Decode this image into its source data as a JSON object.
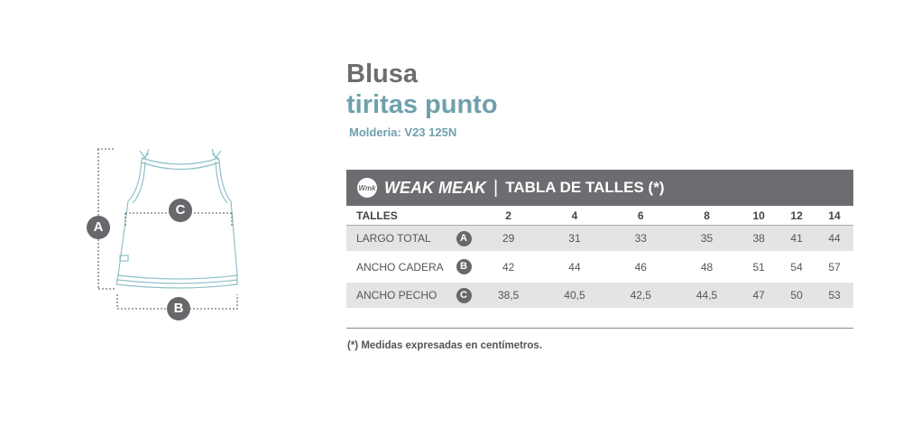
{
  "title": "Blusa",
  "subtitle": "tiritas punto",
  "molderia": "Molderia: V23 125N",
  "header": {
    "logo_text": "Wmk",
    "brand": "WEAK MEAK",
    "separator": "|",
    "title": "TABLA DE TALLES (*)"
  },
  "table": {
    "columns": [
      "TALLES",
      "",
      "2",
      "4",
      "6",
      "8",
      "10",
      "12",
      "14"
    ],
    "rows": [
      {
        "label": "LARGO TOTAL",
        "badge": "A",
        "values": [
          "29",
          "31",
          "33",
          "35",
          "38",
          "41",
          "44"
        ]
      },
      {
        "label": "ANCHO CADERA",
        "badge": "B",
        "values": [
          "42",
          "44",
          "46",
          "48",
          "51",
          "54",
          "57"
        ]
      },
      {
        "label": "ANCHO PECHO",
        "badge": "C",
        "values": [
          "38,5",
          "40,5",
          "42,5",
          "44,5",
          "47",
          "50",
          "53"
        ]
      }
    ]
  },
  "footnote": "(*) Medidas expresadas en centímetros.",
  "diagram": {
    "labels": [
      "A",
      "B",
      "C"
    ]
  },
  "colors": {
    "accent": "#6fa0ac",
    "header_bg": "#6d6c70",
    "badge": "#68676b"
  }
}
